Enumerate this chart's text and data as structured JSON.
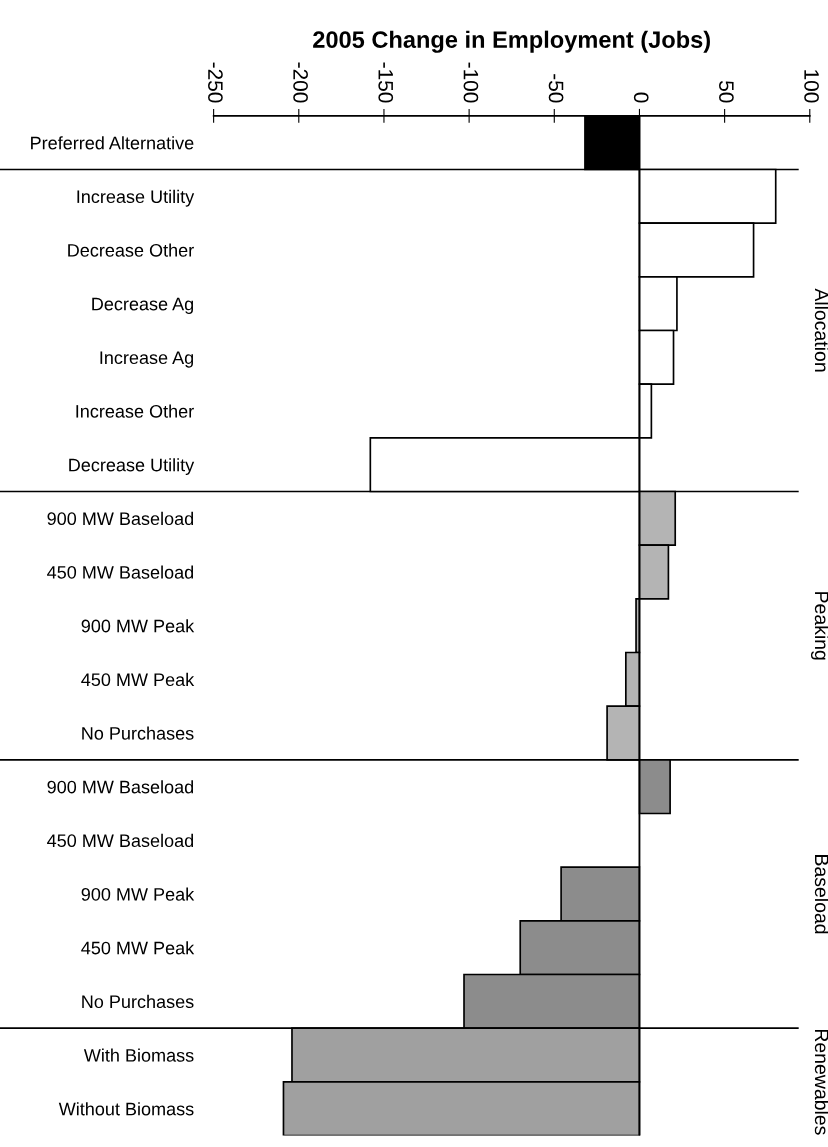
{
  "chart_data": {
    "type": "bar",
    "orientation": "horizontal",
    "xlabel": "2005 Change in Employment (Jobs)",
    "categories": [
      "Preferred Alternative",
      "Increase Utility",
      "Decrease Other",
      "Decrease Ag",
      "Increase Ag",
      "Increase Other",
      "Decrease Utility",
      "900 MW Baseload",
      "450 MW Baseload",
      "900 MW Peak",
      "450 MW Peak",
      "No Purchases",
      "900 MW Baseload",
      "450 MW Baseload",
      "900 MW Peak",
      "450 MW Peak",
      "No Purchases",
      "With Biomass",
      "Without Biomass"
    ],
    "values": [
      -32,
      80,
      67,
      22,
      20,
      7,
      -158,
      21,
      17,
      -2,
      -8,
      -19,
      18,
      0,
      -46,
      -70,
      -103,
      -204,
      -209
    ],
    "colors": [
      "#000000",
      "#ffffff",
      "#ffffff",
      "#ffffff",
      "#ffffff",
      "#ffffff",
      "#ffffff",
      "#b4b4b4",
      "#b4b4b4",
      "#b4b4b4",
      "#b4b4b4",
      "#b4b4b4",
      "#8c8c8c",
      "#8c8c8c",
      "#8c8c8c",
      "#8c8c8c",
      "#8c8c8c",
      "#a0a0a0",
      "#a0a0a0"
    ],
    "xlim": [
      -250,
      100
    ],
    "xticks": [
      -250,
      -200,
      -150,
      -100,
      -50,
      0,
      50,
      100
    ],
    "annotations": [
      "Allocation",
      "Peaking",
      "Baseload",
      "Renewables"
    ]
  }
}
